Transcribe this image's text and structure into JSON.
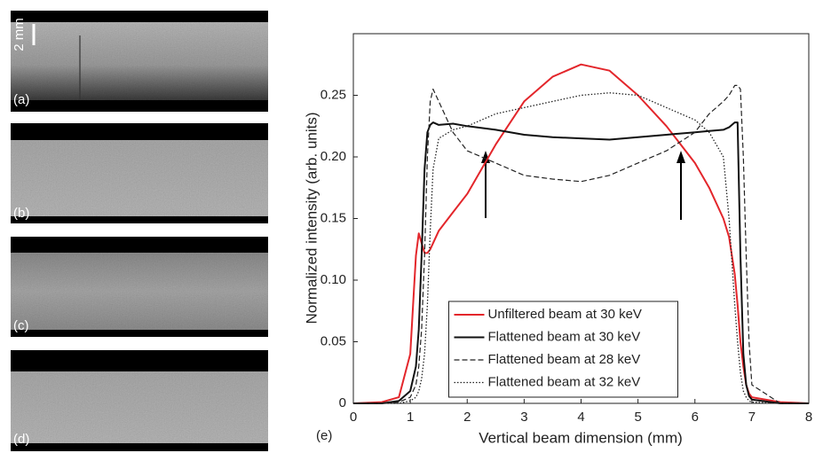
{
  "chart_data": {
    "type": "line",
    "panel_label": "(e)",
    "xlabel": "Vertical beam dimension (mm)",
    "ylabel": "Normalized intensity (arb. units)",
    "x": [
      0,
      0.5,
      0.8,
      1.0,
      1.1,
      1.15,
      1.2,
      1.25,
      1.3,
      1.35,
      1.4,
      1.5,
      1.75,
      2,
      2.5,
      3,
      3.5,
      4,
      4.5,
      5,
      5.5,
      6,
      6.25,
      6.5,
      6.6,
      6.7,
      6.75,
      6.8,
      6.85,
      6.9,
      6.95,
      7,
      7.5,
      8
    ],
    "series": [
      {
        "name": "Unfiltered beam at 30 keV",
        "color": "#e3262b",
        "style": "solid",
        "width": 2,
        "values": [
          0,
          0.001,
          0.005,
          0.04,
          0.12,
          0.138,
          0.13,
          0.122,
          0.122,
          0.125,
          0.13,
          0.14,
          0.155,
          0.17,
          0.21,
          0.245,
          0.265,
          0.275,
          0.27,
          0.25,
          0.225,
          0.195,
          0.175,
          0.15,
          0.135,
          0.105,
          0.08,
          0.05,
          0.03,
          0.015,
          0.008,
          0.005,
          0.001,
          0
        ]
      },
      {
        "name": "Flattened beam at 30 keV",
        "color": "#111111",
        "style": "solid",
        "width": 2,
        "values": [
          0,
          0,
          0.002,
          0.01,
          0.03,
          0.06,
          0.12,
          0.19,
          0.22,
          0.226,
          0.228,
          0.226,
          0.227,
          0.225,
          0.222,
          0.218,
          0.216,
          0.215,
          0.214,
          0.216,
          0.218,
          0.22,
          0.221,
          0.222,
          0.224,
          0.228,
          0.228,
          0.12,
          0.04,
          0.015,
          0.006,
          0.003,
          0,
          0
        ]
      },
      {
        "name": "Flattened beam at 28 keV",
        "color": "#222222",
        "style": "dashed",
        "width": 1.2,
        "values": [
          0,
          0,
          0.001,
          0.005,
          0.015,
          0.03,
          0.06,
          0.12,
          0.2,
          0.245,
          0.255,
          0.245,
          0.22,
          0.205,
          0.195,
          0.185,
          0.182,
          0.18,
          0.185,
          0.195,
          0.205,
          0.22,
          0.235,
          0.245,
          0.25,
          0.258,
          0.258,
          0.255,
          0.2,
          0.12,
          0.05,
          0.015,
          0,
          0
        ]
      },
      {
        "name": "Flattened beam at 32 keV",
        "color": "#222222",
        "style": "dotted",
        "width": 1.3,
        "values": [
          0,
          0,
          0,
          0.002,
          0.005,
          0.01,
          0.02,
          0.04,
          0.08,
          0.14,
          0.19,
          0.215,
          0.222,
          0.225,
          0.235,
          0.24,
          0.245,
          0.25,
          0.252,
          0.25,
          0.24,
          0.23,
          0.22,
          0.2,
          0.15,
          0.08,
          0.05,
          0.025,
          0.01,
          0.005,
          0.002,
          0.001,
          0,
          0
        ]
      }
    ],
    "xlim": [
      0,
      8
    ],
    "xticks": [
      0,
      1,
      2,
      3,
      4,
      5,
      6,
      7,
      8
    ],
    "ylim": [
      0,
      0.3
    ],
    "yticks": [
      0,
      0.05,
      {
        "value": 0.1,
        "label": "0.10"
      },
      0.15,
      {
        "value": 0.2,
        "label": "0.20"
      },
      0.25
    ],
    "grid": false,
    "legend": "lower center"
  },
  "panels": [
    "(a)",
    "(b)",
    "(c)",
    "(d)"
  ],
  "scale_bar": "2 mm"
}
